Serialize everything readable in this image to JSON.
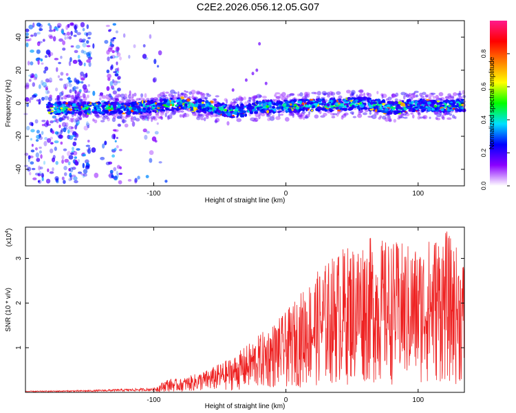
{
  "title": "C2E2.2026.056.12.05.G07",
  "chart_data": [
    {
      "type": "heatmap",
      "xlabel": "Height of straight line (km)",
      "ylabel": "Frequency (Hz)",
      "xlim": [
        -197,
        135
      ],
      "ylim": [
        -50,
        50
      ],
      "xticks": [
        -100,
        0,
        100
      ],
      "xtick_labels": [
        "-100",
        "0",
        "100"
      ],
      "yticks": [
        -40,
        -20,
        0,
        20,
        40
      ],
      "ytick_labels": [
        "-40",
        "-20",
        "0",
        "20",
        "40"
      ],
      "ridge_center_hz": {
        "x": [
          -197,
          -180,
          -160,
          -140,
          -120,
          -100,
          -80,
          -60,
          -40,
          -30,
          -20,
          0,
          20,
          40,
          60,
          80,
          100,
          120,
          135
        ],
        "y": [
          -3,
          -3,
          -3,
          -3,
          -3,
          -2,
          0,
          -2,
          -5,
          -4,
          -2,
          -2,
          -1,
          -1,
          0,
          -3,
          -1,
          -2,
          -1
        ]
      },
      "colorbar": {
        "label": "Normalized spectral amplitude",
        "range": [
          0,
          1
        ],
        "ticks": [
          "0.0",
          "0.2",
          "0.4",
          "0.6",
          "0.8"
        ],
        "colors": [
          "#ffffff",
          "#8a00ff",
          "#0000ff",
          "#00e0ff",
          "#00ff00",
          "#ffff00",
          "#ff8000",
          "#ff0000",
          "#ff1a8c"
        ]
      }
    },
    {
      "type": "line",
      "xlabel": "Height of straight line (km)",
      "ylabel": "SNR (10 * v/v)",
      "scale_label": "(x10",
      "scale_exponent": "4",
      "scale_suffix": ")",
      "xlim": [
        -197,
        135
      ],
      "ylim": [
        0,
        3.7
      ],
      "xticks": [
        -100,
        0,
        100
      ],
      "xtick_labels": [
        "-100",
        "0",
        "100"
      ],
      "yticks": [
        1,
        2,
        3
      ],
      "ytick_labels": [
        "1",
        "2",
        "3"
      ],
      "series": [
        {
          "color": "#ee2222",
          "envelope_x": [
            -197,
            -150,
            -100,
            -90,
            -80,
            -60,
            -40,
            -20,
            0,
            20,
            40,
            60,
            80,
            100,
            120,
            135
          ],
          "envelope_ymax": [
            0.03,
            0.05,
            0.1,
            0.3,
            0.3,
            0.5,
            0.8,
            1.3,
            1.8,
            2.6,
            3.2,
            3.5,
            3.4,
            3.3,
            3.7,
            3.0
          ]
        }
      ]
    }
  ]
}
